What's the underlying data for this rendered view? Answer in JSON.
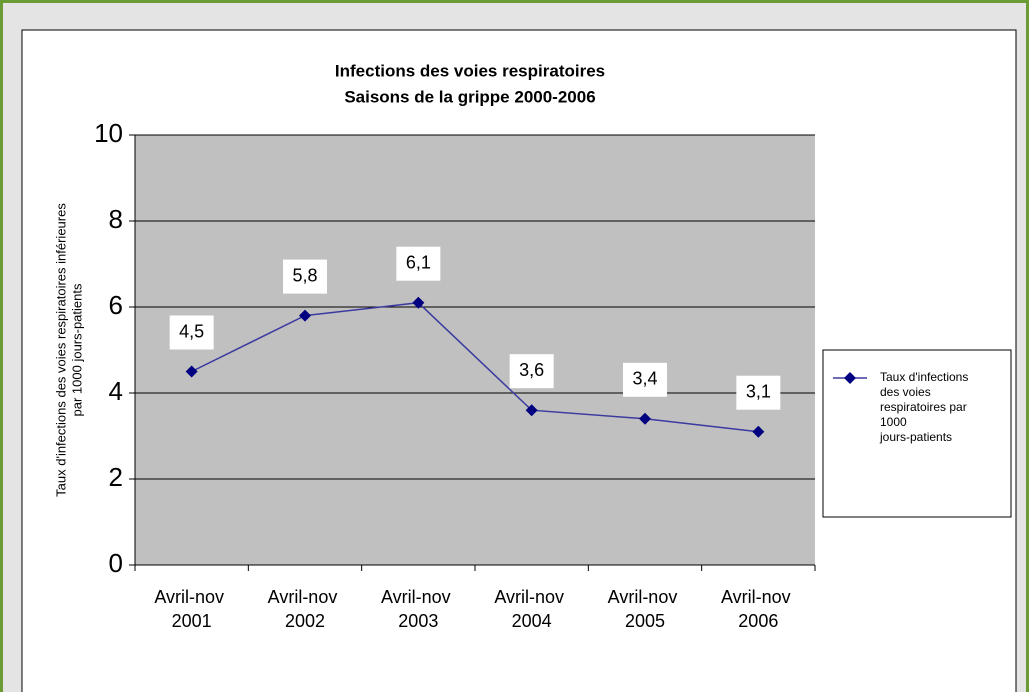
{
  "chart_data": {
    "type": "line",
    "title": "Infections des voies respiratoires",
    "subtitle": "Saisons de la grippe 2000-2006",
    "ylabel": [
      "Taux d'infections des voies respiratoires inférieures",
      "par 1000 jours-patients"
    ],
    "categories": [
      "Avril-nov 2001",
      "Avril-nov 2002",
      "Avril-nov 2003",
      "Avril-nov 2004",
      "Avril-nov 2005",
      "Avril-nov 2006"
    ],
    "series": [
      {
        "name": "Taux d'infections des voies respiratoires par 1000 jours-patients",
        "color": "#000080",
        "values": [
          4.5,
          5.8,
          6.1,
          3.6,
          3.4,
          3.1
        ],
        "value_labels": [
          "4,5",
          "5,8",
          "6,1",
          "3,6",
          "3,4",
          "3,1"
        ]
      }
    ],
    "ylim": [
      0,
      10
    ],
    "yticks": [
      0,
      2,
      4,
      6,
      8,
      10
    ],
    "grid": true,
    "legend": "right"
  }
}
